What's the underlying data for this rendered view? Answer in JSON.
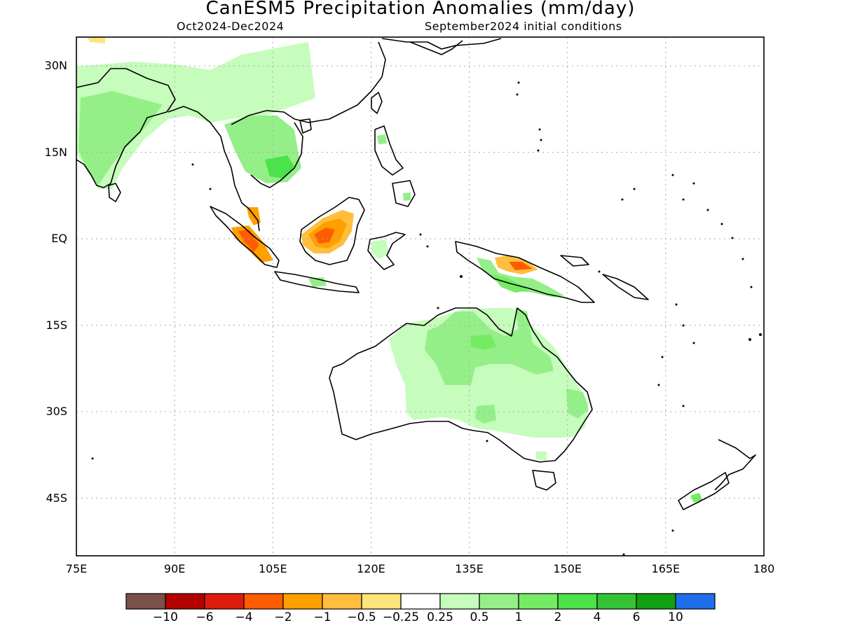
{
  "header": {
    "title": "CanESM5 Precipitation Anomalies (mm/day)",
    "period": "Oct2024-Dec2024",
    "init": "September2024 initial conditions"
  },
  "map": {
    "lon_range": [
      75,
      180
    ],
    "lat_range": [
      -55,
      35
    ],
    "lat_ticks": [
      {
        "value": 30,
        "label": "30N"
      },
      {
        "value": 15,
        "label": "15N"
      },
      {
        "value": 0,
        "label": "EQ"
      },
      {
        "value": -15,
        "label": "15S"
      },
      {
        "value": -30,
        "label": "30S"
      },
      {
        "value": -45,
        "label": "45S"
      }
    ],
    "lon_ticks": [
      {
        "value": 75,
        "label": "75E"
      },
      {
        "value": 90,
        "label": "90E"
      },
      {
        "value": 105,
        "label": "105E"
      },
      {
        "value": 120,
        "label": "120E"
      },
      {
        "value": 135,
        "label": "135E"
      },
      {
        "value": 150,
        "label": "150E"
      },
      {
        "value": 165,
        "label": "165E"
      },
      {
        "value": 180,
        "label": "180"
      }
    ],
    "grid": "dotted"
  },
  "colorbar": {
    "colors": [
      "#7a5048",
      "#b30000",
      "#dd1c0e",
      "#ff5c00",
      "#ffa000",
      "#ffbf3c",
      "#ffe47c",
      "#ffffff",
      "#c6fcbc",
      "#94ef88",
      "#74eb63",
      "#4be24a",
      "#35c335",
      "#10a010",
      "#1e6eeb"
    ],
    "labels": [
      "-10",
      "-6",
      "-4",
      "-2",
      "-1",
      "-0.5",
      "-0.25",
      "0.25",
      "0.5",
      "1",
      "2",
      "4",
      "6",
      "10"
    ]
  },
  "palette": {
    "dry_strong": "#ff5c00",
    "dry": "#ffa000",
    "dry_light": "#ffbf3c",
    "dry_faint": "#ffe47c",
    "wet_faint": "#c6fcbc",
    "wet_light": "#94ef88",
    "wet": "#74eb63",
    "wet_strong": "#4be24a"
  }
}
